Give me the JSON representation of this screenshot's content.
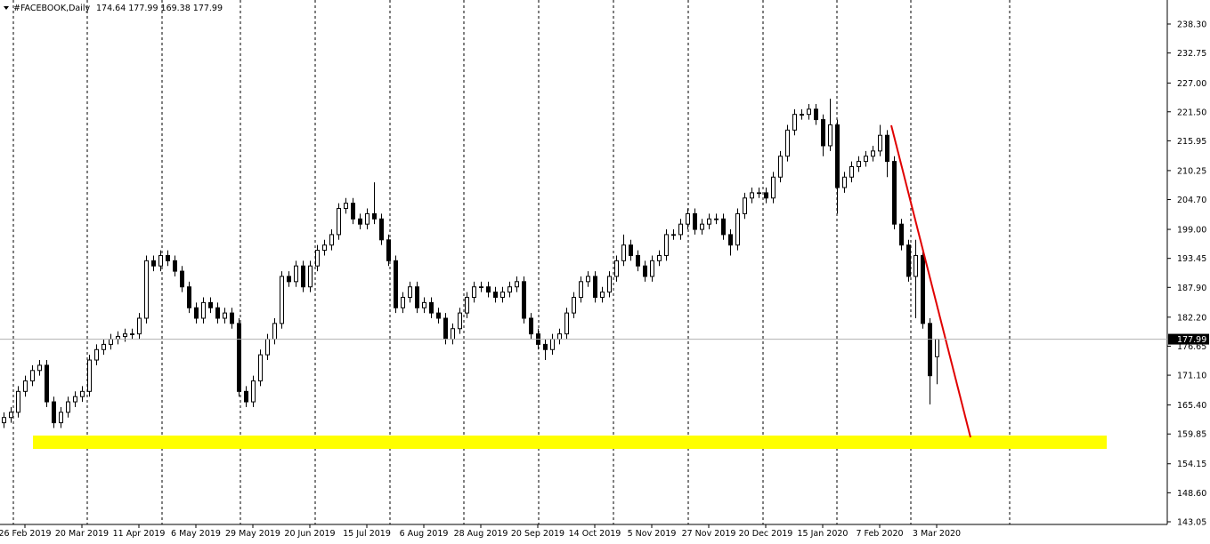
{
  "header": {
    "symbol": "#FACEBOOK,Daily",
    "ohlc": "174.64 177.99 169.38 177.99"
  },
  "chart_data": {
    "type": "candlestick",
    "categories": [
      null,
      null,
      null,
      "26 Feb 2019",
      null,
      null,
      null,
      null,
      null,
      null,
      null,
      "20 Mar 2019",
      null,
      null,
      null,
      null,
      null,
      null,
      null,
      "11 Apr 2019",
      null,
      null,
      null,
      null,
      null,
      null,
      null,
      "6 May 2019",
      null,
      null,
      null,
      null,
      null,
      null,
      null,
      "29 May 2019",
      null,
      null,
      null,
      null,
      null,
      null,
      null,
      "20 Jun 2019",
      null,
      null,
      null,
      null,
      null,
      null,
      null,
      "15 Jul 2019",
      null,
      null,
      null,
      null,
      null,
      null,
      null,
      "6 Aug 2019",
      null,
      null,
      null,
      null,
      null,
      null,
      null,
      "28 Aug 2019",
      null,
      null,
      null,
      null,
      null,
      null,
      null,
      "20 Sep 2019",
      null,
      null,
      null,
      null,
      null,
      null,
      null,
      "14 Oct 2019",
      null,
      null,
      null,
      null,
      null,
      null,
      null,
      "5 Nov 2019",
      null,
      null,
      null,
      null,
      null,
      null,
      null,
      "27 Nov 2019",
      null,
      null,
      null,
      null,
      null,
      null,
      null,
      "20 Dec 2019",
      null,
      null,
      null,
      null,
      null,
      null,
      null,
      "15 Jan 2020",
      null,
      null,
      null,
      null,
      null,
      null,
      null,
      "7 Feb 2020",
      null,
      null,
      null,
      null,
      null,
      null,
      null,
      "3 Mar 2020"
    ],
    "open": [
      162,
      163,
      164,
      168,
      170,
      172,
      173,
      166,
      162,
      164,
      166,
      167,
      168,
      174,
      176,
      177,
      178,
      178.5,
      179,
      179,
      182,
      193,
      192,
      194,
      193,
      191,
      188,
      184,
      182,
      185,
      184,
      182,
      183,
      181,
      168,
      166,
      170,
      175,
      178,
      181,
      190,
      189,
      192,
      188,
      192,
      195,
      196,
      198,
      203,
      204,
      201,
      200,
      202,
      201,
      197,
      193,
      184,
      186,
      188,
      184,
      185,
      183,
      182,
      178,
      180,
      183,
      186,
      188,
      188,
      187,
      186,
      187,
      188,
      189,
      182,
      179,
      177,
      176,
      178,
      179,
      183,
      186,
      189,
      190,
      186,
      187,
      190,
      193,
      196,
      194,
      192,
      190,
      193,
      194,
      198,
      198,
      200,
      202,
      199,
      200,
      201,
      201,
      198,
      196,
      202,
      205,
      206,
      206,
      205,
      209,
      213,
      218,
      221,
      221,
      222,
      220,
      215,
      219,
      207,
      209,
      211,
      212,
      213,
      214,
      217,
      212,
      200,
      196,
      190,
      194,
      181,
      174.64
    ],
    "high": [
      164,
      165,
      169,
      171,
      173,
      174,
      174,
      167,
      165,
      167,
      168,
      169,
      175,
      177,
      178,
      179,
      179.5,
      180,
      180,
      183,
      194,
      194,
      195,
      195,
      194,
      192,
      189,
      185,
      186,
      186,
      185,
      184,
      184,
      182,
      169,
      171,
      176,
      179,
      182,
      191,
      191,
      193,
      193,
      193,
      196,
      197,
      199,
      204,
      205,
      205,
      202,
      203,
      208,
      202,
      198,
      194,
      187,
      189,
      189,
      186,
      186,
      184,
      183,
      181,
      184,
      187,
      189,
      189,
      189,
      188,
      188,
      189,
      190,
      190,
      183,
      180,
      178,
      179,
      180,
      184,
      187,
      190,
      191,
      191,
      188,
      191,
      194,
      198,
      197,
      195,
      193,
      194,
      195,
      199,
      199,
      201,
      203,
      203,
      201,
      202,
      202,
      202,
      199,
      203,
      206,
      207,
      207,
      207,
      210,
      214,
      219,
      222,
      222,
      223,
      223,
      221,
      224,
      220,
      210,
      212,
      213,
      214,
      215,
      219,
      218,
      213,
      201,
      197,
      197,
      195,
      182,
      177.99
    ],
    "low": [
      161,
      162,
      163,
      167,
      169,
      171,
      165,
      161,
      161,
      163,
      165,
      166,
      167,
      173,
      175,
      176,
      177,
      177.5,
      178,
      178,
      181,
      191,
      191,
      192,
      190,
      187,
      183,
      181,
      181,
      183,
      181,
      181,
      180,
      167,
      165,
      165,
      169,
      174,
      177,
      180,
      188,
      188,
      187,
      187,
      191,
      194,
      195,
      197,
      202,
      200,
      199,
      199,
      200,
      196,
      192,
      183,
      183,
      185,
      183,
      183,
      182,
      181,
      177,
      177,
      179,
      182,
      185,
      187,
      186,
      185,
      185,
      186,
      187,
      181,
      178,
      176,
      174,
      175,
      177,
      178,
      182,
      185,
      188,
      185,
      185,
      186,
      189,
      192,
      193,
      191,
      189,
      189,
      192,
      193,
      197,
      197,
      199,
      198,
      198,
      199,
      200,
      197,
      194,
      195,
      201,
      204,
      205,
      204,
      204,
      208,
      212,
      217,
      220,
      220,
      219,
      213,
      214,
      202,
      206,
      208,
      210,
      211,
      212,
      213,
      209,
      199,
      195,
      189,
      182,
      180,
      165.5,
      169.38
    ],
    "close": [
      163,
      164,
      168,
      170,
      172,
      173,
      166,
      162,
      164,
      166,
      167,
      168,
      174,
      176,
      177,
      178,
      178.5,
      179,
      179,
      182,
      193,
      192,
      194,
      193,
      191,
      188,
      184,
      182,
      185,
      184,
      182,
      183,
      181,
      168,
      166,
      170,
      175,
      178,
      181,
      190,
      189,
      192,
      188,
      192,
      195,
      196,
      198,
      203,
      204,
      201,
      200,
      202,
      201,
      197,
      193,
      184,
      186,
      188,
      184,
      185,
      183,
      182,
      178,
      180,
      183,
      186,
      188,
      188,
      187,
      186,
      187,
      188,
      189,
      182,
      179,
      177,
      176,
      178,
      179,
      183,
      186,
      189,
      190,
      186,
      187,
      190,
      193,
      196,
      194,
      192,
      190,
      193,
      194,
      198,
      198,
      200,
      202,
      199,
      200,
      201,
      201,
      198,
      196,
      202,
      205,
      206,
      206,
      205,
      209,
      213,
      218,
      221,
      221,
      222,
      220,
      215,
      219,
      207,
      209,
      211,
      212,
      213,
      214,
      217,
      212,
      200,
      196,
      190,
      194,
      181,
      171,
      177.99
    ],
    "ylim": [
      142.54,
      242.89
    ],
    "yticks": [
      {
        "value": 238.3,
        "label": "238.30"
      },
      {
        "value": 232.75,
        "label": "232.75"
      },
      {
        "value": 227,
        "label": "227.00"
      },
      {
        "value": 221.5,
        "label": "221.50"
      },
      {
        "value": 215.95,
        "label": "215.95"
      },
      {
        "value": 210.25,
        "label": "210.25"
      },
      {
        "value": 204.7,
        "label": "204.70"
      },
      {
        "value": 199,
        "label": "199.00"
      },
      {
        "value": 193.45,
        "label": "193.45"
      },
      {
        "value": 187.9,
        "label": "187.90"
      },
      {
        "value": 182.2,
        "label": "182.20"
      },
      {
        "value": 176.65,
        "label": "176.65"
      },
      {
        "value": 171.1,
        "label": "171.10"
      },
      {
        "value": 165.4,
        "label": "165.40"
      },
      {
        "value": 159.85,
        "label": "159.85"
      },
      {
        "value": 154.15,
        "label": "154.15"
      },
      {
        "value": 148.6,
        "label": "148.60"
      },
      {
        "value": 143.05,
        "label": "143.05"
      }
    ],
    "last_price": {
      "value": 177.99,
      "label": "177.99"
    },
    "bull_color": "#ffffff",
    "bear_color": "#000000",
    "outline_color": "#000000"
  }
}
